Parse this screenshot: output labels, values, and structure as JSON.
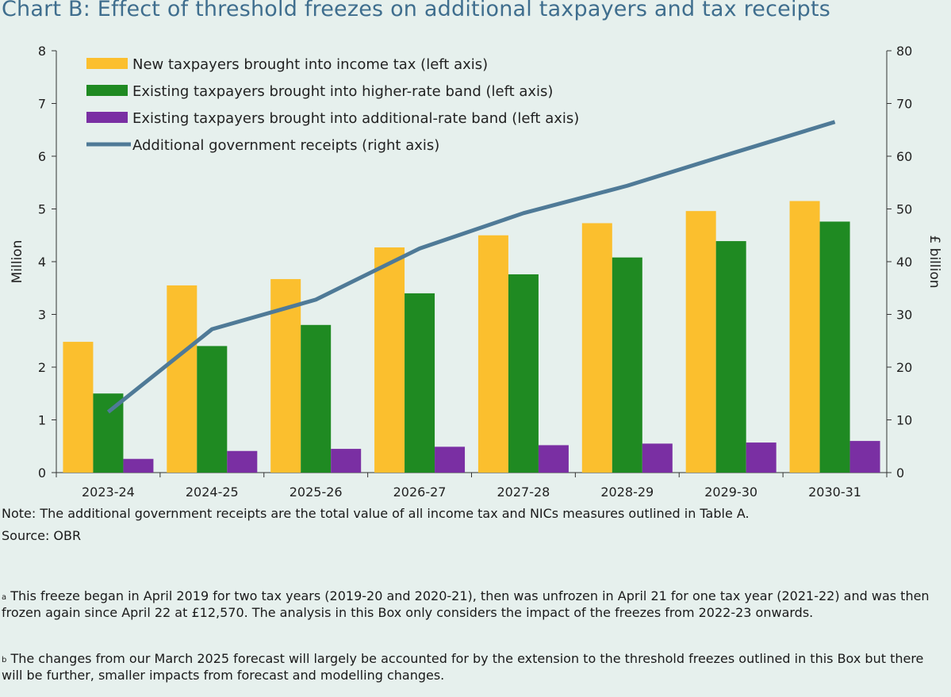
{
  "title": "Chart B: Effect of threshold freezes on additional taxpayers and tax receipts",
  "note": "Note: The additional government receipts are the total value of all income tax and NICs measures outlined in Table A.",
  "source": "Source: OBR",
  "footnotes": [
    {
      "marker": "a",
      "text": "This freeze began in April 2019 for two tax years (2019-20 and 2020-21), then was unfrozen in April 21 for one tax year (2021-22) and was then frozen again since April 22 at £12,570. The analysis in this Box only considers the impact of the freezes from 2022-23 onwards."
    },
    {
      "marker": "b",
      "text": "The changes from our March 2025 forecast will largely be accounted for by the extension to the threshold freezes outlined in this Box but there will be further, smaller impacts from forecast and modelling changes."
    }
  ],
  "chart_data": {
    "type": "bar",
    "categories": [
      "2023-24",
      "2024-25",
      "2025-26",
      "2026-27",
      "2027-28",
      "2028-29",
      "2029-30",
      "2030-31"
    ],
    "ylabel": "Million",
    "y2label": "£ billion",
    "ylim": [
      0,
      8
    ],
    "y2lim": [
      0,
      80
    ],
    "yticks": [
      "0",
      "1",
      "2",
      "3",
      "4",
      "5",
      "6",
      "7",
      "8"
    ],
    "y2ticks": [
      "0",
      "10",
      "20",
      "30",
      "40",
      "50",
      "60",
      "70",
      "80"
    ],
    "grid": false,
    "legend_position": "top-left",
    "series": [
      {
        "name": "New taxpayers brought into income tax (left axis)",
        "type": "bar",
        "axis": "left",
        "color": "#fbbf2e",
        "values": [
          2.48,
          3.55,
          3.67,
          4.27,
          4.5,
          4.73,
          4.96,
          5.15
        ]
      },
      {
        "name": "Existing taxpayers brought into higher-rate band (left axis)",
        "type": "bar",
        "axis": "left",
        "color": "#1f8a22",
        "values": [
          1.5,
          2.4,
          2.8,
          3.4,
          3.76,
          4.08,
          4.39,
          4.76
        ]
      },
      {
        "name": "Existing taxpayers brought into additional-rate band (left axis)",
        "type": "bar",
        "axis": "left",
        "color": "#7a2fa3",
        "values": [
          0.26,
          0.41,
          0.45,
          0.49,
          0.52,
          0.55,
          0.57,
          0.6
        ]
      },
      {
        "name": "Additional government receipts (right axis)",
        "type": "line",
        "axis": "right",
        "color": "#4f7a97",
        "values": [
          11.5,
          27.2,
          32.8,
          42.5,
          49.2,
          54.4,
          60.5,
          66.5
        ]
      }
    ]
  }
}
